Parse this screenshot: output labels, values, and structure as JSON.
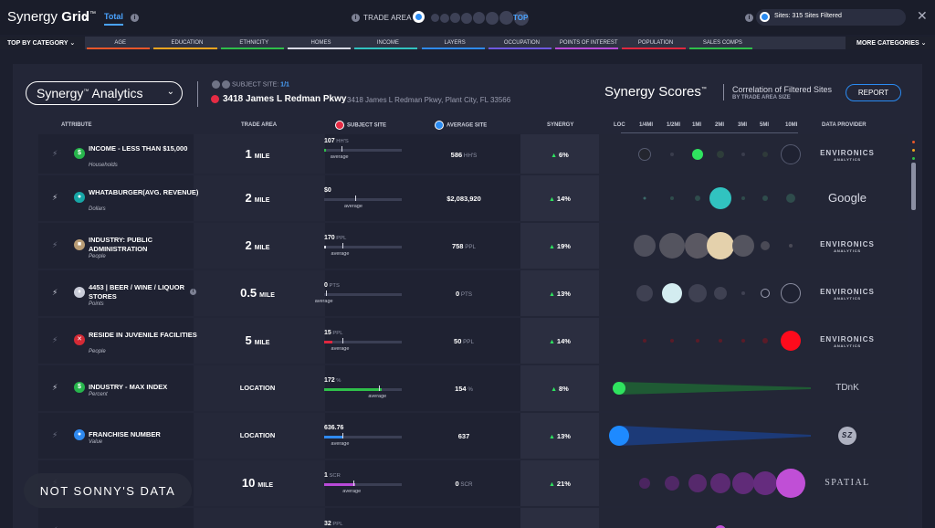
{
  "app": {
    "brand_light": "Synergy ",
    "brand_bold": "Grid",
    "brand_tm": "™",
    "tab_total": "Total"
  },
  "trade_area": {
    "label": "TRADE AREA",
    "top_label": "TOP"
  },
  "sites": {
    "text": "Sites: 315 Sites Filtered"
  },
  "categories": {
    "first": "TOP BY CATEGORY",
    "more": "MORE CATEGORIES",
    "items": [
      {
        "label": "AGE",
        "color": "#e8562a"
      },
      {
        "label": "EDUCATION",
        "color": "#f0a41f"
      },
      {
        "label": "ETHNICITY",
        "color": "#2fbf4a"
      },
      {
        "label": "HOMES",
        "color": "#d8dae5"
      },
      {
        "label": "INCOME",
        "color": "#31c3c0"
      },
      {
        "label": "LAYERS",
        "color": "#2f8af0"
      },
      {
        "label": "OCCUPATION",
        "color": "#6e58e0"
      },
      {
        "label": "POINTS OF INTEREST",
        "color": "#b84ad8"
      },
      {
        "label": "POPULATION",
        "color": "#e0273f"
      },
      {
        "label": "SALES COMPS",
        "color": "#2fbf4a"
      }
    ]
  },
  "header": {
    "analytics_label": "Synergy",
    "analytics_tm": "™",
    "analytics_suffix": " Analytics",
    "subject_site_label": "SUBJECT SITE:",
    "subject_site_count": "1/1",
    "address_main": "3418 James L Redman Pkwy",
    "address_full": "3418 James L Redman Pkwy, Plant City, FL 33566",
    "scores_title": "Synergy Scores",
    "scores_tm": "™",
    "correlation": "Correlation of Filtered Sites",
    "correlation_sub": "BY TRADE AREA SIZE",
    "report": "REPORT"
  },
  "columns": {
    "attribute": "ATTRIBUTE",
    "trade_area": "TRADE AREA",
    "subject_site": "SUBJECT SITE",
    "average_site": "AVERAGE SITE",
    "synergy": "SYNERGY",
    "rings": [
      "LOC",
      "1/4MI",
      "1/2MI",
      "1MI",
      "2MI",
      "3MI",
      "5MI",
      "10MI"
    ],
    "data_provider": "DATA PROVIDER"
  },
  "rows": [
    {
      "name": "INCOME - LESS THAN $15,000",
      "sub": "Households",
      "icon": "$",
      "icon_color": "#27b54c",
      "trade_num": "1",
      "trade_unit": "MILE",
      "subj_val": "107",
      "subj_unit": "HH'S",
      "subj_fill": 0.02,
      "subj_color": "#2fbf4a",
      "avg_mark": 0.22,
      "avg_val": "586",
      "avg_unit": "HH'S",
      "synergy": "6%",
      "provider": "ENVIRONICS",
      "provider_sub": "ANALYTICS"
    },
    {
      "name": "WHATABURGER(AVG. REVENUE)",
      "sub": "Dollars",
      "icon": "●",
      "icon_color": "#17a6a6",
      "trade_num": "2",
      "trade_unit": "MILE",
      "subj_val": "$0",
      "subj_unit": "",
      "subj_fill": 0,
      "subj_color": "#31c3c0",
      "avg_mark": 0.4,
      "avg_val": "$2,083,920",
      "avg_unit": "",
      "synergy": "14%",
      "provider": "Google",
      "provider_sub": ""
    },
    {
      "name": "INDUSTRY: PUBLIC ADMINISTRATION",
      "sub": "People",
      "icon": "■",
      "icon_color": "#b89c75",
      "trade_num": "2",
      "trade_unit": "MILE",
      "subj_val": "170",
      "subj_unit": "PPL",
      "subj_fill": 0.02,
      "subj_color": "#d8dae5",
      "avg_mark": 0.23,
      "avg_val": "758",
      "avg_unit": "PPL",
      "synergy": "19%",
      "provider": "ENVIRONICS",
      "provider_sub": "ANALYTICS"
    },
    {
      "name": "4453 | BEER / WINE / LIQUOR STORES",
      "sub": "Points",
      "icon": "♦",
      "icon_color": "#c9ccd8",
      "trade_num": "0.5",
      "trade_unit": "MILE",
      "subj_val": "0",
      "subj_unit": "PTS",
      "subj_fill": 0,
      "subj_color": "#d8dae5",
      "avg_mark": 0.02,
      "avg_val": "0",
      "avg_unit": "PTS",
      "synergy": "13%",
      "provider": "ENVIRONICS",
      "provider_sub": "ANALYTICS"
    },
    {
      "name": "RESIDE IN JUVENILE FACILITIES",
      "sub": "People",
      "icon": "✕",
      "icon_color": "#d42a35",
      "trade_num": "5",
      "trade_unit": "MILE",
      "subj_val": "15",
      "subj_unit": "PPL",
      "subj_fill": 0.1,
      "subj_color": "#e0273f",
      "avg_mark": 0.23,
      "avg_val": "50",
      "avg_unit": "PPL",
      "synergy": "14%",
      "provider": "ENVIRONICS",
      "provider_sub": "ANALYTICS"
    },
    {
      "name": "INDUSTRY - MAX INDEX",
      "sub": "Percent",
      "icon": "$",
      "icon_color": "#27b54c",
      "trade_num": "LOCATION",
      "trade_unit": "",
      "subj_val": "172",
      "subj_unit": "%",
      "subj_fill": 0.74,
      "subj_color": "#2fbf4a",
      "avg_mark": 0.71,
      "avg_val": "154",
      "avg_unit": "%",
      "synergy": "8%",
      "provider": "TDnK",
      "provider_sub": ""
    },
    {
      "name": "FRANCHISE NUMBER",
      "sub": "Value",
      "icon": "●",
      "icon_color": "#2f8af0",
      "trade_num": "LOCATION",
      "trade_unit": "",
      "subj_val": "636.76",
      "subj_unit": "",
      "subj_fill": 0.23,
      "subj_color": "#2f8af0",
      "avg_mark": 0.23,
      "avg_val": "637",
      "avg_unit": "",
      "synergy": "13%",
      "provider": "SZ",
      "provider_sub": ""
    },
    {
      "name": "",
      "sub": "",
      "icon": "",
      "icon_color": "#b84ad8",
      "trade_num": "10",
      "trade_unit": "MILE",
      "subj_val": "1",
      "subj_unit": "SCR",
      "subj_fill": 0.4,
      "subj_color": "#b84ad8",
      "avg_mark": 0.38,
      "avg_val": "0",
      "avg_unit": "SCR",
      "synergy": "21%",
      "provider": "SPATIAL",
      "provider_sub": ""
    },
    {
      "name": "",
      "sub": "",
      "icon": "",
      "icon_color": "#b84ad8",
      "trade_num": "",
      "trade_unit": "",
      "subj_val": "32",
      "subj_unit": "PPL",
      "subj_fill": 0,
      "subj_color": "#b84ad8",
      "avg_mark": 0,
      "avg_val": "",
      "avg_unit": "",
      "synergy": "",
      "provider": "",
      "provider_sub": ""
    }
  ],
  "avg_label": "average",
  "watermark": "NOT SONNY'S DATA"
}
